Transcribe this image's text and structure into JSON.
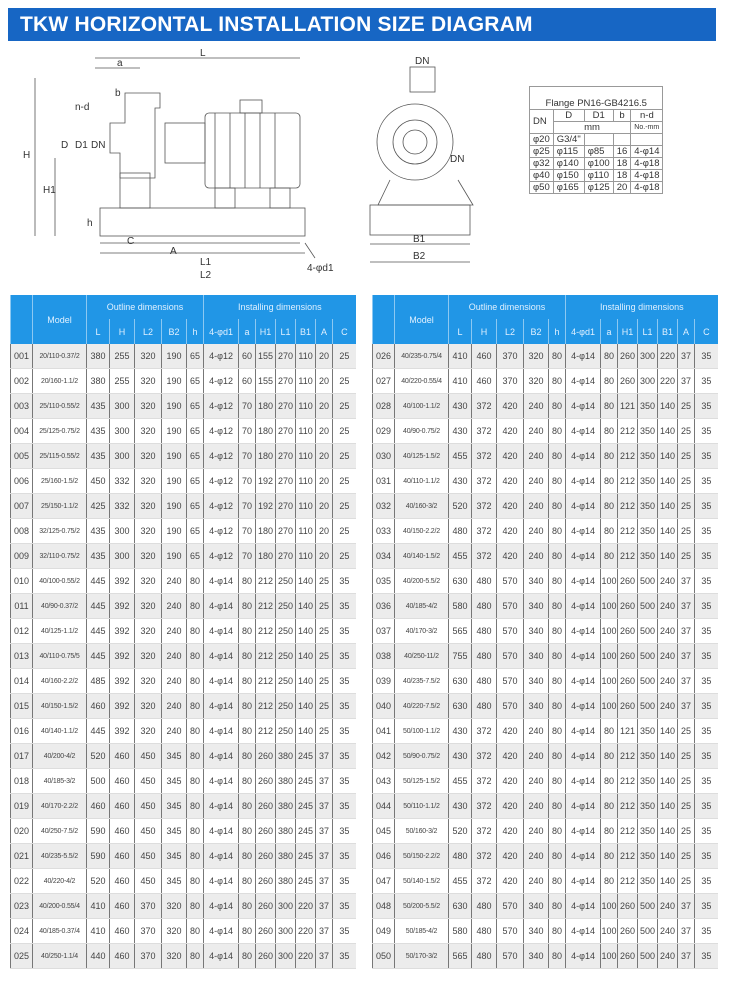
{
  "title": "TKW HORIZONTAL INSTALLATION SIZE DIAGRAM",
  "diagram_side": {
    "labels": {
      "L": "L",
      "a": "a",
      "b": "b",
      "nd": "n-d",
      "D": "D",
      "D1": "D1",
      "DN": "DN",
      "H": "H",
      "H1": "H1",
      "h": "h",
      "C": "C",
      "A": "A",
      "L1": "L1",
      "L2": "L2",
      "d1": "4-φd1"
    }
  },
  "diagram_front": {
    "labels": {
      "DN_top": "DN",
      "DN_side": "DN",
      "B1": "B1",
      "B2": "B2"
    }
  },
  "flange": {
    "title": "Flange PN16-GB4216.5",
    "headers": [
      "DN",
      "D",
      "D1",
      "b",
      "n-d"
    ],
    "units": [
      "mm",
      "No.-mm"
    ],
    "rows": [
      [
        "φ20",
        "G3/4\"",
        "",
        "",
        ""
      ],
      [
        "φ25",
        "φ115",
        "φ85",
        "16",
        "4-φ14"
      ],
      [
        "φ32",
        "φ140",
        "φ100",
        "18",
        "4-φ18"
      ],
      [
        "φ40",
        "φ150",
        "φ110",
        "18",
        "4-φ18"
      ],
      [
        "φ50",
        "φ165",
        "φ125",
        "20",
        "4-φ18"
      ]
    ]
  },
  "table": {
    "headers": {
      "model": "Model",
      "outline": "Outline dimensions",
      "installing": "Installing dimensions",
      "cols": [
        "L",
        "H",
        "L2",
        "B2",
        "h",
        "4-φd1",
        "a",
        "H1",
        "L1",
        "B1",
        "A",
        "C"
      ]
    },
    "rows": [
      [
        "001",
        "20/110-0.37/2",
        "380",
        "255",
        "320",
        "190",
        "65",
        "4-φ12",
        "60",
        "155",
        "270",
        "110",
        "20",
        "25"
      ],
      [
        "002",
        "20/160-1.1/2",
        "380",
        "255",
        "320",
        "190",
        "65",
        "4-φ12",
        "60",
        "155",
        "270",
        "110",
        "20",
        "25"
      ],
      [
        "003",
        "25/110-0.55/2",
        "435",
        "300",
        "320",
        "190",
        "65",
        "4-φ12",
        "70",
        "180",
        "270",
        "110",
        "20",
        "25"
      ],
      [
        "004",
        "25/125-0.75/2",
        "435",
        "300",
        "320",
        "190",
        "65",
        "4-φ12",
        "70",
        "180",
        "270",
        "110",
        "20",
        "25"
      ],
      [
        "005",
        "25/115-0.55/2",
        "435",
        "300",
        "320",
        "190",
        "65",
        "4-φ12",
        "70",
        "180",
        "270",
        "110",
        "20",
        "25"
      ],
      [
        "006",
        "25/160-1.5/2",
        "450",
        "332",
        "320",
        "190",
        "65",
        "4-φ12",
        "70",
        "192",
        "270",
        "110",
        "20",
        "25"
      ],
      [
        "007",
        "25/150-1.1/2",
        "425",
        "332",
        "320",
        "190",
        "65",
        "4-φ12",
        "70",
        "192",
        "270",
        "110",
        "20",
        "25"
      ],
      [
        "008",
        "32/125-0.75/2",
        "435",
        "300",
        "320",
        "190",
        "65",
        "4-φ12",
        "70",
        "180",
        "270",
        "110",
        "20",
        "25"
      ],
      [
        "009",
        "32/110-0.75/2",
        "435",
        "300",
        "320",
        "190",
        "65",
        "4-φ12",
        "70",
        "180",
        "270",
        "110",
        "20",
        "25"
      ],
      [
        "010",
        "40/100-0.55/2",
        "445",
        "392",
        "320",
        "240",
        "80",
        "4-φ14",
        "80",
        "212",
        "250",
        "140",
        "25",
        "35"
      ],
      [
        "011",
        "40/90-0.37/2",
        "445",
        "392",
        "320",
        "240",
        "80",
        "4-φ14",
        "80",
        "212",
        "250",
        "140",
        "25",
        "35"
      ],
      [
        "012",
        "40/125-1.1/2",
        "445",
        "392",
        "320",
        "240",
        "80",
        "4-φ14",
        "80",
        "212",
        "250",
        "140",
        "25",
        "35"
      ],
      [
        "013",
        "40/110-0.75/5",
        "445",
        "392",
        "320",
        "240",
        "80",
        "4-φ14",
        "80",
        "212",
        "250",
        "140",
        "25",
        "35"
      ],
      [
        "014",
        "40/160-2.2/2",
        "485",
        "392",
        "320",
        "240",
        "80",
        "4-φ14",
        "80",
        "212",
        "250",
        "140",
        "25",
        "35"
      ],
      [
        "015",
        "40/150-1.5/2",
        "460",
        "392",
        "320",
        "240",
        "80",
        "4-φ14",
        "80",
        "212",
        "250",
        "140",
        "25",
        "35"
      ],
      [
        "016",
        "40/140-1.1/2",
        "445",
        "392",
        "320",
        "240",
        "80",
        "4-φ14",
        "80",
        "212",
        "250",
        "140",
        "25",
        "35"
      ],
      [
        "017",
        "40/200-4/2",
        "520",
        "460",
        "450",
        "345",
        "80",
        "4-φ14",
        "80",
        "260",
        "380",
        "245",
        "37",
        "35"
      ],
      [
        "018",
        "40/185-3/2",
        "500",
        "460",
        "450",
        "345",
        "80",
        "4-φ14",
        "80",
        "260",
        "380",
        "245",
        "37",
        "35"
      ],
      [
        "019",
        "40/170-2.2/2",
        "460",
        "460",
        "450",
        "345",
        "80",
        "4-φ14",
        "80",
        "260",
        "380",
        "245",
        "37",
        "35"
      ],
      [
        "020",
        "40/250-7.5/2",
        "590",
        "460",
        "450",
        "345",
        "80",
        "4-φ14",
        "80",
        "260",
        "380",
        "245",
        "37",
        "35"
      ],
      [
        "021",
        "40/235-5.5/2",
        "590",
        "460",
        "450",
        "345",
        "80",
        "4-φ14",
        "80",
        "260",
        "380",
        "245",
        "37",
        "35"
      ],
      [
        "022",
        "40/220-4/2",
        "520",
        "460",
        "450",
        "345",
        "80",
        "4-φ14",
        "80",
        "260",
        "380",
        "245",
        "37",
        "35"
      ],
      [
        "023",
        "40/200-0.55/4",
        "410",
        "460",
        "370",
        "320",
        "80",
        "4-φ14",
        "80",
        "260",
        "300",
        "220",
        "37",
        "35"
      ],
      [
        "024",
        "40/185-0.37/4",
        "410",
        "460",
        "370",
        "320",
        "80",
        "4-φ14",
        "80",
        "260",
        "300",
        "220",
        "37",
        "35"
      ],
      [
        "025",
        "40/250-1.1/4",
        "440",
        "460",
        "370",
        "320",
        "80",
        "4-φ14",
        "80",
        "260",
        "300",
        "220",
        "37",
        "35"
      ],
      [
        "026",
        "40/235-0.75/4",
        "410",
        "460",
        "370",
        "320",
        "80",
        "4-φ14",
        "80",
        "260",
        "300",
        "220",
        "37",
        "35"
      ],
      [
        "027",
        "40/220-0.55/4",
        "410",
        "460",
        "370",
        "320",
        "80",
        "4-φ14",
        "80",
        "260",
        "300",
        "220",
        "37",
        "35"
      ],
      [
        "028",
        "40/100-1.1/2",
        "430",
        "372",
        "420",
        "240",
        "80",
        "4-φ14",
        "80",
        "121",
        "350",
        "140",
        "25",
        "35"
      ],
      [
        "029",
        "40/90-0.75/2",
        "430",
        "372",
        "420",
        "240",
        "80",
        "4-φ14",
        "80",
        "212",
        "350",
        "140",
        "25",
        "35"
      ],
      [
        "030",
        "40/125-1.5/2",
        "455",
        "372",
        "420",
        "240",
        "80",
        "4-φ14",
        "80",
        "212",
        "350",
        "140",
        "25",
        "35"
      ],
      [
        "031",
        "40/110-1.1/2",
        "430",
        "372",
        "420",
        "240",
        "80",
        "4-φ14",
        "80",
        "212",
        "350",
        "140",
        "25",
        "35"
      ],
      [
        "032",
        "40/160-3/2",
        "520",
        "372",
        "420",
        "240",
        "80",
        "4-φ14",
        "80",
        "212",
        "350",
        "140",
        "25",
        "35"
      ],
      [
        "033",
        "40/150-2.2/2",
        "480",
        "372",
        "420",
        "240",
        "80",
        "4-φ14",
        "80",
        "212",
        "350",
        "140",
        "25",
        "35"
      ],
      [
        "034",
        "40/140-1.5/2",
        "455",
        "372",
        "420",
        "240",
        "80",
        "4-φ14",
        "80",
        "212",
        "350",
        "140",
        "25",
        "35"
      ],
      [
        "035",
        "40/200-5.5/2",
        "630",
        "480",
        "570",
        "340",
        "80",
        "4-φ14",
        "100",
        "260",
        "500",
        "240",
        "37",
        "35"
      ],
      [
        "036",
        "40/185-4/2",
        "580",
        "480",
        "570",
        "340",
        "80",
        "4-φ14",
        "100",
        "260",
        "500",
        "240",
        "37",
        "35"
      ],
      [
        "037",
        "40/170-3/2",
        "565",
        "480",
        "570",
        "340",
        "80",
        "4-φ14",
        "100",
        "260",
        "500",
        "240",
        "37",
        "35"
      ],
      [
        "038",
        "40/250-11/2",
        "755",
        "480",
        "570",
        "340",
        "80",
        "4-φ14",
        "100",
        "260",
        "500",
        "240",
        "37",
        "35"
      ],
      [
        "039",
        "40/235-7.5/2",
        "630",
        "480",
        "570",
        "340",
        "80",
        "4-φ14",
        "100",
        "260",
        "500",
        "240",
        "37",
        "35"
      ],
      [
        "040",
        "40/220-7.5/2",
        "630",
        "480",
        "570",
        "340",
        "80",
        "4-φ14",
        "100",
        "260",
        "500",
        "240",
        "37",
        "35"
      ],
      [
        "041",
        "50/100-1.1/2",
        "430",
        "372",
        "420",
        "240",
        "80",
        "4-φ14",
        "80",
        "121",
        "350",
        "140",
        "25",
        "35"
      ],
      [
        "042",
        "50/90-0.75/2",
        "430",
        "372",
        "420",
        "240",
        "80",
        "4-φ14",
        "80",
        "212",
        "350",
        "140",
        "25",
        "35"
      ],
      [
        "043",
        "50/125-1.5/2",
        "455",
        "372",
        "420",
        "240",
        "80",
        "4-φ14",
        "80",
        "212",
        "350",
        "140",
        "25",
        "35"
      ],
      [
        "044",
        "50/110-1.1/2",
        "430",
        "372",
        "420",
        "240",
        "80",
        "4-φ14",
        "80",
        "212",
        "350",
        "140",
        "25",
        "35"
      ],
      [
        "045",
        "50/160-3/2",
        "520",
        "372",
        "420",
        "240",
        "80",
        "4-φ14",
        "80",
        "212",
        "350",
        "140",
        "25",
        "35"
      ],
      [
        "046",
        "50/150-2.2/2",
        "480",
        "372",
        "420",
        "240",
        "80",
        "4-φ14",
        "80",
        "212",
        "350",
        "140",
        "25",
        "35"
      ],
      [
        "047",
        "50/140-1.5/2",
        "455",
        "372",
        "420",
        "240",
        "80",
        "4-φ14",
        "80",
        "212",
        "350",
        "140",
        "25",
        "35"
      ],
      [
        "048",
        "50/200-5.5/2",
        "630",
        "480",
        "570",
        "340",
        "80",
        "4-φ14",
        "100",
        "260",
        "500",
        "240",
        "37",
        "35"
      ],
      [
        "049",
        "50/185-4/2",
        "580",
        "480",
        "570",
        "340",
        "80",
        "4-φ14",
        "100",
        "260",
        "500",
        "240",
        "37",
        "35"
      ],
      [
        "050",
        "50/170-3/2",
        "565",
        "480",
        "570",
        "340",
        "80",
        "4-φ14",
        "100",
        "260",
        "500",
        "240",
        "37",
        "35"
      ]
    ]
  }
}
